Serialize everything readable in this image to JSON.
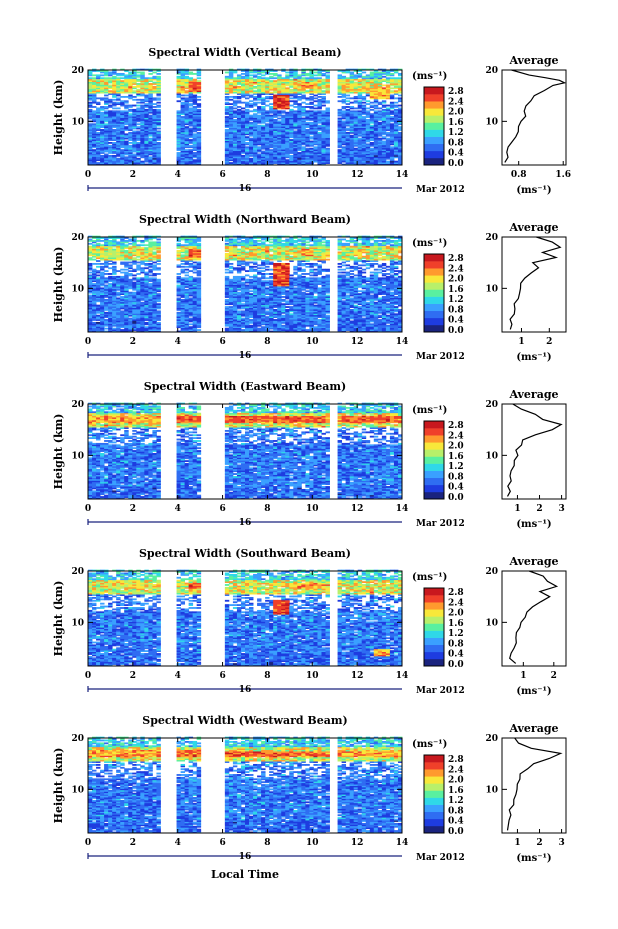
{
  "figure": {
    "date_label": "16",
    "month_label": "Mar 2012",
    "xlabel": "Local Time",
    "colorbar_unit": "(ms⁻¹)",
    "colorbar_ticks": [
      "0.0",
      "0.4",
      "0.8",
      "1.2",
      "1.6",
      "2.0",
      "2.4",
      "2.8"
    ],
    "colormap": [
      "#1a237e",
      "#1e3ce0",
      "#2f6df2",
      "#3aa0ff",
      "#2fd8e8",
      "#59f0a0",
      "#b8f06a",
      "#f8e83a",
      "#ff9a2e",
      "#f0402a",
      "#c8181e"
    ]
  },
  "chart_data": [
    {
      "type": "heatmap",
      "title": "Spectral Width (Vertical Beam)",
      "xlabel": "Local Time",
      "ylabel": "Height (km)",
      "x_ticks": [
        "0",
        "2",
        "4",
        "6",
        "8",
        "10",
        "12",
        "14"
      ],
      "xlim": [
        0,
        14
      ],
      "y_ticks": [
        "10",
        "20"
      ],
      "ylim": [
        1.5,
        20
      ],
      "colorbar": {
        "label": "(ms⁻¹)",
        "range": [
          0.0,
          2.8
        ],
        "ticks": [
          "0.0",
          "0.4",
          "0.8",
          "1.2",
          "1.6",
          "2.0",
          "2.4",
          "2.8"
        ]
      },
      "data_gaps_hours": [
        [
          3.3,
          4.0
        ],
        [
          5.0,
          6.1
        ],
        [
          10.7,
          11.1
        ]
      ],
      "high_width_regions": [
        {
          "t": [
            4.5,
            5.0
          ],
          "h": [
            15.8,
            17.8
          ],
          "value": 2.6
        },
        {
          "t": [
            8.3,
            8.9
          ],
          "h": [
            12.5,
            15.2
          ],
          "value": 2.8
        },
        {
          "t": [
            9.6,
            10.2
          ],
          "h": [
            16.2,
            17.6
          ],
          "value": 2.4
        },
        {
          "t": [
            12.6,
            13.4
          ],
          "h": [
            14.5,
            16.5
          ],
          "value": 2.4
        }
      ],
      "average_profile": {
        "title": "Average",
        "xlabel": "(ms⁻¹)",
        "x_ticks": [
          "0.8",
          "1.6"
        ],
        "xlim": [
          0.5,
          1.65
        ],
        "y_ticks": [
          "10",
          "20"
        ],
        "ylim": [
          1.5,
          20
        ],
        "height": [
          2,
          3,
          4,
          5,
          6,
          7,
          8,
          9,
          10,
          11,
          12,
          13,
          14,
          15,
          16,
          17,
          17.5,
          18,
          18.5,
          19,
          20
        ],
        "width": [
          0.55,
          0.58,
          0.6,
          0.62,
          0.66,
          0.72,
          0.76,
          0.82,
          0.85,
          0.9,
          0.92,
          0.95,
          1.0,
          1.1,
          1.25,
          1.45,
          1.6,
          1.5,
          1.3,
          1.0,
          0.7
        ]
      }
    },
    {
      "type": "heatmap",
      "title": "Spectral Width (Northward Beam)",
      "xlabel": "Local Time",
      "ylabel": "Height (km)",
      "x_ticks": [
        "0",
        "2",
        "4",
        "6",
        "8",
        "10",
        "12",
        "14"
      ],
      "xlim": [
        0,
        14
      ],
      "y_ticks": [
        "10",
        "20"
      ],
      "ylim": [
        1.5,
        20
      ],
      "colorbar": {
        "label": "(ms⁻¹)",
        "range": [
          0.0,
          2.8
        ],
        "ticks": [
          "0.0",
          "0.4",
          "0.8",
          "1.2",
          "1.6",
          "2.0",
          "2.4",
          "2.8"
        ]
      },
      "data_gaps_hours": [
        [
          3.3,
          4.0
        ],
        [
          5.0,
          6.1
        ],
        [
          10.7,
          11.1
        ]
      ],
      "high_width_regions": [
        {
          "t": [
            0.0,
            1.5
          ],
          "h": [
            16.3,
            17.5
          ],
          "value": 2.0
        },
        {
          "t": [
            4.5,
            5.0
          ],
          "h": [
            16.0,
            17.8
          ],
          "value": 2.6
        },
        {
          "t": [
            8.3,
            8.9
          ],
          "h": [
            10.5,
            15.0
          ],
          "value": 2.8
        },
        {
          "t": [
            9.5,
            10.1
          ],
          "h": [
            16.2,
            17.6
          ],
          "value": 2.4
        }
      ],
      "average_profile": {
        "title": "Average",
        "xlabel": "(ms⁻¹)",
        "x_ticks": [
          "1",
          "2"
        ],
        "xlim": [
          0.3,
          2.6
        ],
        "y_ticks": [
          "10",
          "20"
        ],
        "ylim": [
          1.5,
          20
        ],
        "height": [
          2,
          3,
          4,
          5,
          6,
          7,
          8,
          9,
          10,
          11,
          12,
          13,
          14,
          15,
          16,
          17,
          18,
          19,
          20
        ],
        "width": [
          0.6,
          0.62,
          0.65,
          0.7,
          0.72,
          0.78,
          0.85,
          0.9,
          0.95,
          1.0,
          1.05,
          1.3,
          1.6,
          1.4,
          2.2,
          1.8,
          2.4,
          2.1,
          1.6
        ]
      }
    },
    {
      "type": "heatmap",
      "title": "Spectral Width (Eastward Beam)",
      "xlabel": "Local Time",
      "ylabel": "Height (km)",
      "x_ticks": [
        "0",
        "2",
        "4",
        "6",
        "8",
        "10",
        "12",
        "14"
      ],
      "xlim": [
        0,
        14
      ],
      "y_ticks": [
        "10",
        "20"
      ],
      "ylim": [
        1.5,
        20
      ],
      "colorbar": {
        "label": "(ms⁻¹)",
        "range": [
          0.0,
          2.8
        ],
        "ticks": [
          "0.0",
          "0.4",
          "0.8",
          "1.2",
          "1.6",
          "2.0",
          "2.4",
          "2.8"
        ]
      },
      "data_gaps_hours": [
        [
          3.3,
          4.0
        ],
        [
          5.0,
          6.1
        ],
        [
          10.7,
          11.1
        ]
      ],
      "high_width_regions": [
        {
          "t": [
            0.0,
            3.3
          ],
          "h": [
            16.3,
            17.8
          ],
          "value": 2.4
        },
        {
          "t": [
            4.0,
            5.0
          ],
          "h": [
            16.3,
            17.8
          ],
          "value": 2.6
        },
        {
          "t": [
            6.1,
            10.7
          ],
          "h": [
            16.4,
            17.8
          ],
          "value": 2.6
        },
        {
          "t": [
            11.1,
            14.0
          ],
          "h": [
            16.4,
            17.8
          ],
          "value": 2.6
        }
      ],
      "average_profile": {
        "title": "Average",
        "xlabel": "(ms⁻¹)",
        "x_ticks": [
          "1",
          "2",
          "3"
        ],
        "xlim": [
          0.3,
          3.2
        ],
        "y_ticks": [
          "10",
          "20"
        ],
        "ylim": [
          1.5,
          20
        ],
        "height": [
          2,
          3,
          4,
          5,
          6,
          7,
          8,
          9,
          10,
          11,
          12,
          13,
          14,
          15,
          16,
          17,
          18,
          19,
          20
        ],
        "width": [
          0.55,
          0.6,
          0.62,
          0.68,
          0.72,
          0.78,
          0.85,
          0.9,
          0.95,
          1.0,
          1.1,
          1.3,
          1.8,
          2.6,
          3.0,
          2.2,
          1.8,
          1.2,
          0.8
        ]
      }
    },
    {
      "type": "heatmap",
      "title": "Spectral Width (Southward Beam)",
      "xlabel": "Local Time",
      "ylabel": "Height (km)",
      "x_ticks": [
        "0",
        "2",
        "4",
        "6",
        "8",
        "10",
        "12",
        "14"
      ],
      "xlim": [
        0,
        14
      ],
      "y_ticks": [
        "10",
        "20"
      ],
      "ylim": [
        1.5,
        20
      ],
      "colorbar": {
        "label": "(ms⁻¹)",
        "range": [
          0.0,
          2.8
        ],
        "ticks": [
          "0.0",
          "0.4",
          "0.8",
          "1.2",
          "1.6",
          "2.0",
          "2.4",
          "2.8"
        ]
      },
      "data_gaps_hours": [
        [
          3.3,
          4.0
        ],
        [
          5.0,
          6.1
        ],
        [
          10.7,
          11.1
        ]
      ],
      "high_width_regions": [
        {
          "t": [
            0.5,
            2.5
          ],
          "h": [
            16.6,
            17.6
          ],
          "value": 2.2
        },
        {
          "t": [
            4.4,
            5.0
          ],
          "h": [
            16.5,
            17.8
          ],
          "value": 2.6
        },
        {
          "t": [
            8.3,
            8.9
          ],
          "h": [
            11.5,
            14.5
          ],
          "value": 2.8
        },
        {
          "t": [
            9.0,
            10.5
          ],
          "h": [
            16.5,
            17.6
          ],
          "value": 2.4
        },
        {
          "t": [
            12.8,
            13.4
          ],
          "h": [
            3.5,
            5.0
          ],
          "value": 2.4
        }
      ],
      "average_profile": {
        "title": "Average",
        "xlabel": "(ms⁻¹)",
        "x_ticks": [
          "1",
          "2"
        ],
        "xlim": [
          0.3,
          2.4
        ],
        "y_ticks": [
          "10",
          "20"
        ],
        "ylim": [
          1.5,
          20
        ],
        "height": [
          2,
          3,
          4,
          5,
          6,
          7,
          8,
          9,
          10,
          11,
          12,
          13,
          14,
          15,
          16,
          17,
          18,
          19,
          20
        ],
        "width": [
          0.75,
          0.6,
          0.62,
          0.68,
          0.72,
          0.78,
          0.82,
          0.9,
          0.95,
          1.0,
          1.1,
          1.3,
          1.6,
          1.9,
          1.5,
          2.1,
          1.8,
          1.6,
          1.2
        ]
      }
    },
    {
      "type": "heatmap",
      "title": "Spectral Width (Westward Beam)",
      "xlabel": "Local Time",
      "ylabel": "Height (km)",
      "x_ticks": [
        "0",
        "2",
        "4",
        "6",
        "8",
        "10",
        "12",
        "14"
      ],
      "xlim": [
        0,
        14
      ],
      "y_ticks": [
        "10",
        "20"
      ],
      "ylim": [
        1.5,
        20
      ],
      "colorbar": {
        "label": "(ms⁻¹)",
        "range": [
          0.0,
          2.8
        ],
        "ticks": [
          "0.0",
          "0.4",
          "0.8",
          "1.2",
          "1.6",
          "2.0",
          "2.4",
          "2.8"
        ]
      },
      "data_gaps_hours": [
        [
          3.3,
          4.0
        ],
        [
          5.0,
          6.1
        ],
        [
          10.7,
          11.1
        ]
      ],
      "high_width_regions": [
        {
          "t": [
            0.0,
            3.3
          ],
          "h": [
            16.3,
            17.8
          ],
          "value": 2.4
        },
        {
          "t": [
            4.0,
            5.0
          ],
          "h": [
            16.2,
            17.8
          ],
          "value": 2.6
        },
        {
          "t": [
            6.1,
            10.7
          ],
          "h": [
            16.3,
            17.5
          ],
          "value": 2.6
        },
        {
          "t": [
            11.1,
            14.0
          ],
          "h": [
            16.3,
            17.5
          ],
          "value": 2.4
        }
      ],
      "average_profile": {
        "title": "Average",
        "xlabel": "(ms⁻¹)",
        "x_ticks": [
          "1",
          "2",
          "3"
        ],
        "xlim": [
          0.3,
          3.2
        ],
        "y_ticks": [
          "10",
          "20"
        ],
        "ylim": [
          1.5,
          20
        ],
        "height": [
          2,
          3,
          4,
          5,
          6,
          7,
          8,
          9,
          10,
          11,
          12,
          13,
          14,
          15,
          16,
          17,
          18,
          19,
          20
        ],
        "width": [
          0.55,
          0.58,
          0.62,
          0.66,
          0.72,
          0.78,
          0.82,
          0.88,
          0.92,
          1.0,
          1.05,
          1.15,
          1.4,
          1.8,
          2.4,
          3.0,
          1.6,
          1.1,
          0.9
        ]
      }
    }
  ]
}
